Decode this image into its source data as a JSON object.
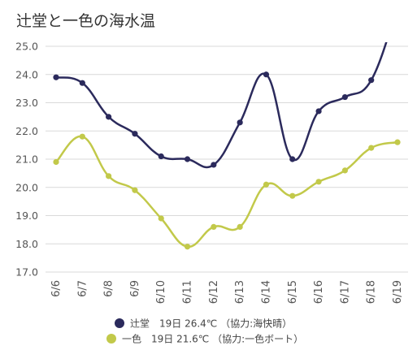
{
  "chart_data": {
    "type": "line",
    "title": "辻堂と一色の海水温",
    "categories": [
      "6/6",
      "6/7",
      "6/8",
      "6/9",
      "6/10",
      "6/11",
      "6/12",
      "6/13",
      "6/14",
      "6/15",
      "6/16",
      "6/17",
      "6/18",
      "6/19"
    ],
    "ylim": [
      17.0,
      25.0
    ],
    "yticks": [
      "17.0",
      "18.0",
      "19.0",
      "20.0",
      "21.0",
      "22.0",
      "23.0",
      "24.0",
      "25.0"
    ],
    "grid": true,
    "legend_position": "bottom",
    "series": [
      {
        "name": "辻堂",
        "legend_label": "辻堂　19日 26.4℃ （協力:海快晴）",
        "color": "#2b2a5c",
        "values": [
          23.9,
          23.7,
          22.5,
          21.9,
          21.1,
          21.0,
          20.8,
          22.3,
          24.0,
          21.0,
          22.7,
          23.2,
          23.8,
          26.4
        ]
      },
      {
        "name": "一色",
        "legend_label": "一色　19日 21.6℃ （協力:一色ボート）",
        "color": "#c2c94a",
        "values": [
          20.9,
          21.8,
          20.4,
          19.9,
          18.9,
          17.9,
          18.6,
          18.6,
          20.1,
          19.7,
          20.2,
          20.6,
          21.4,
          21.6
        ]
      }
    ]
  }
}
